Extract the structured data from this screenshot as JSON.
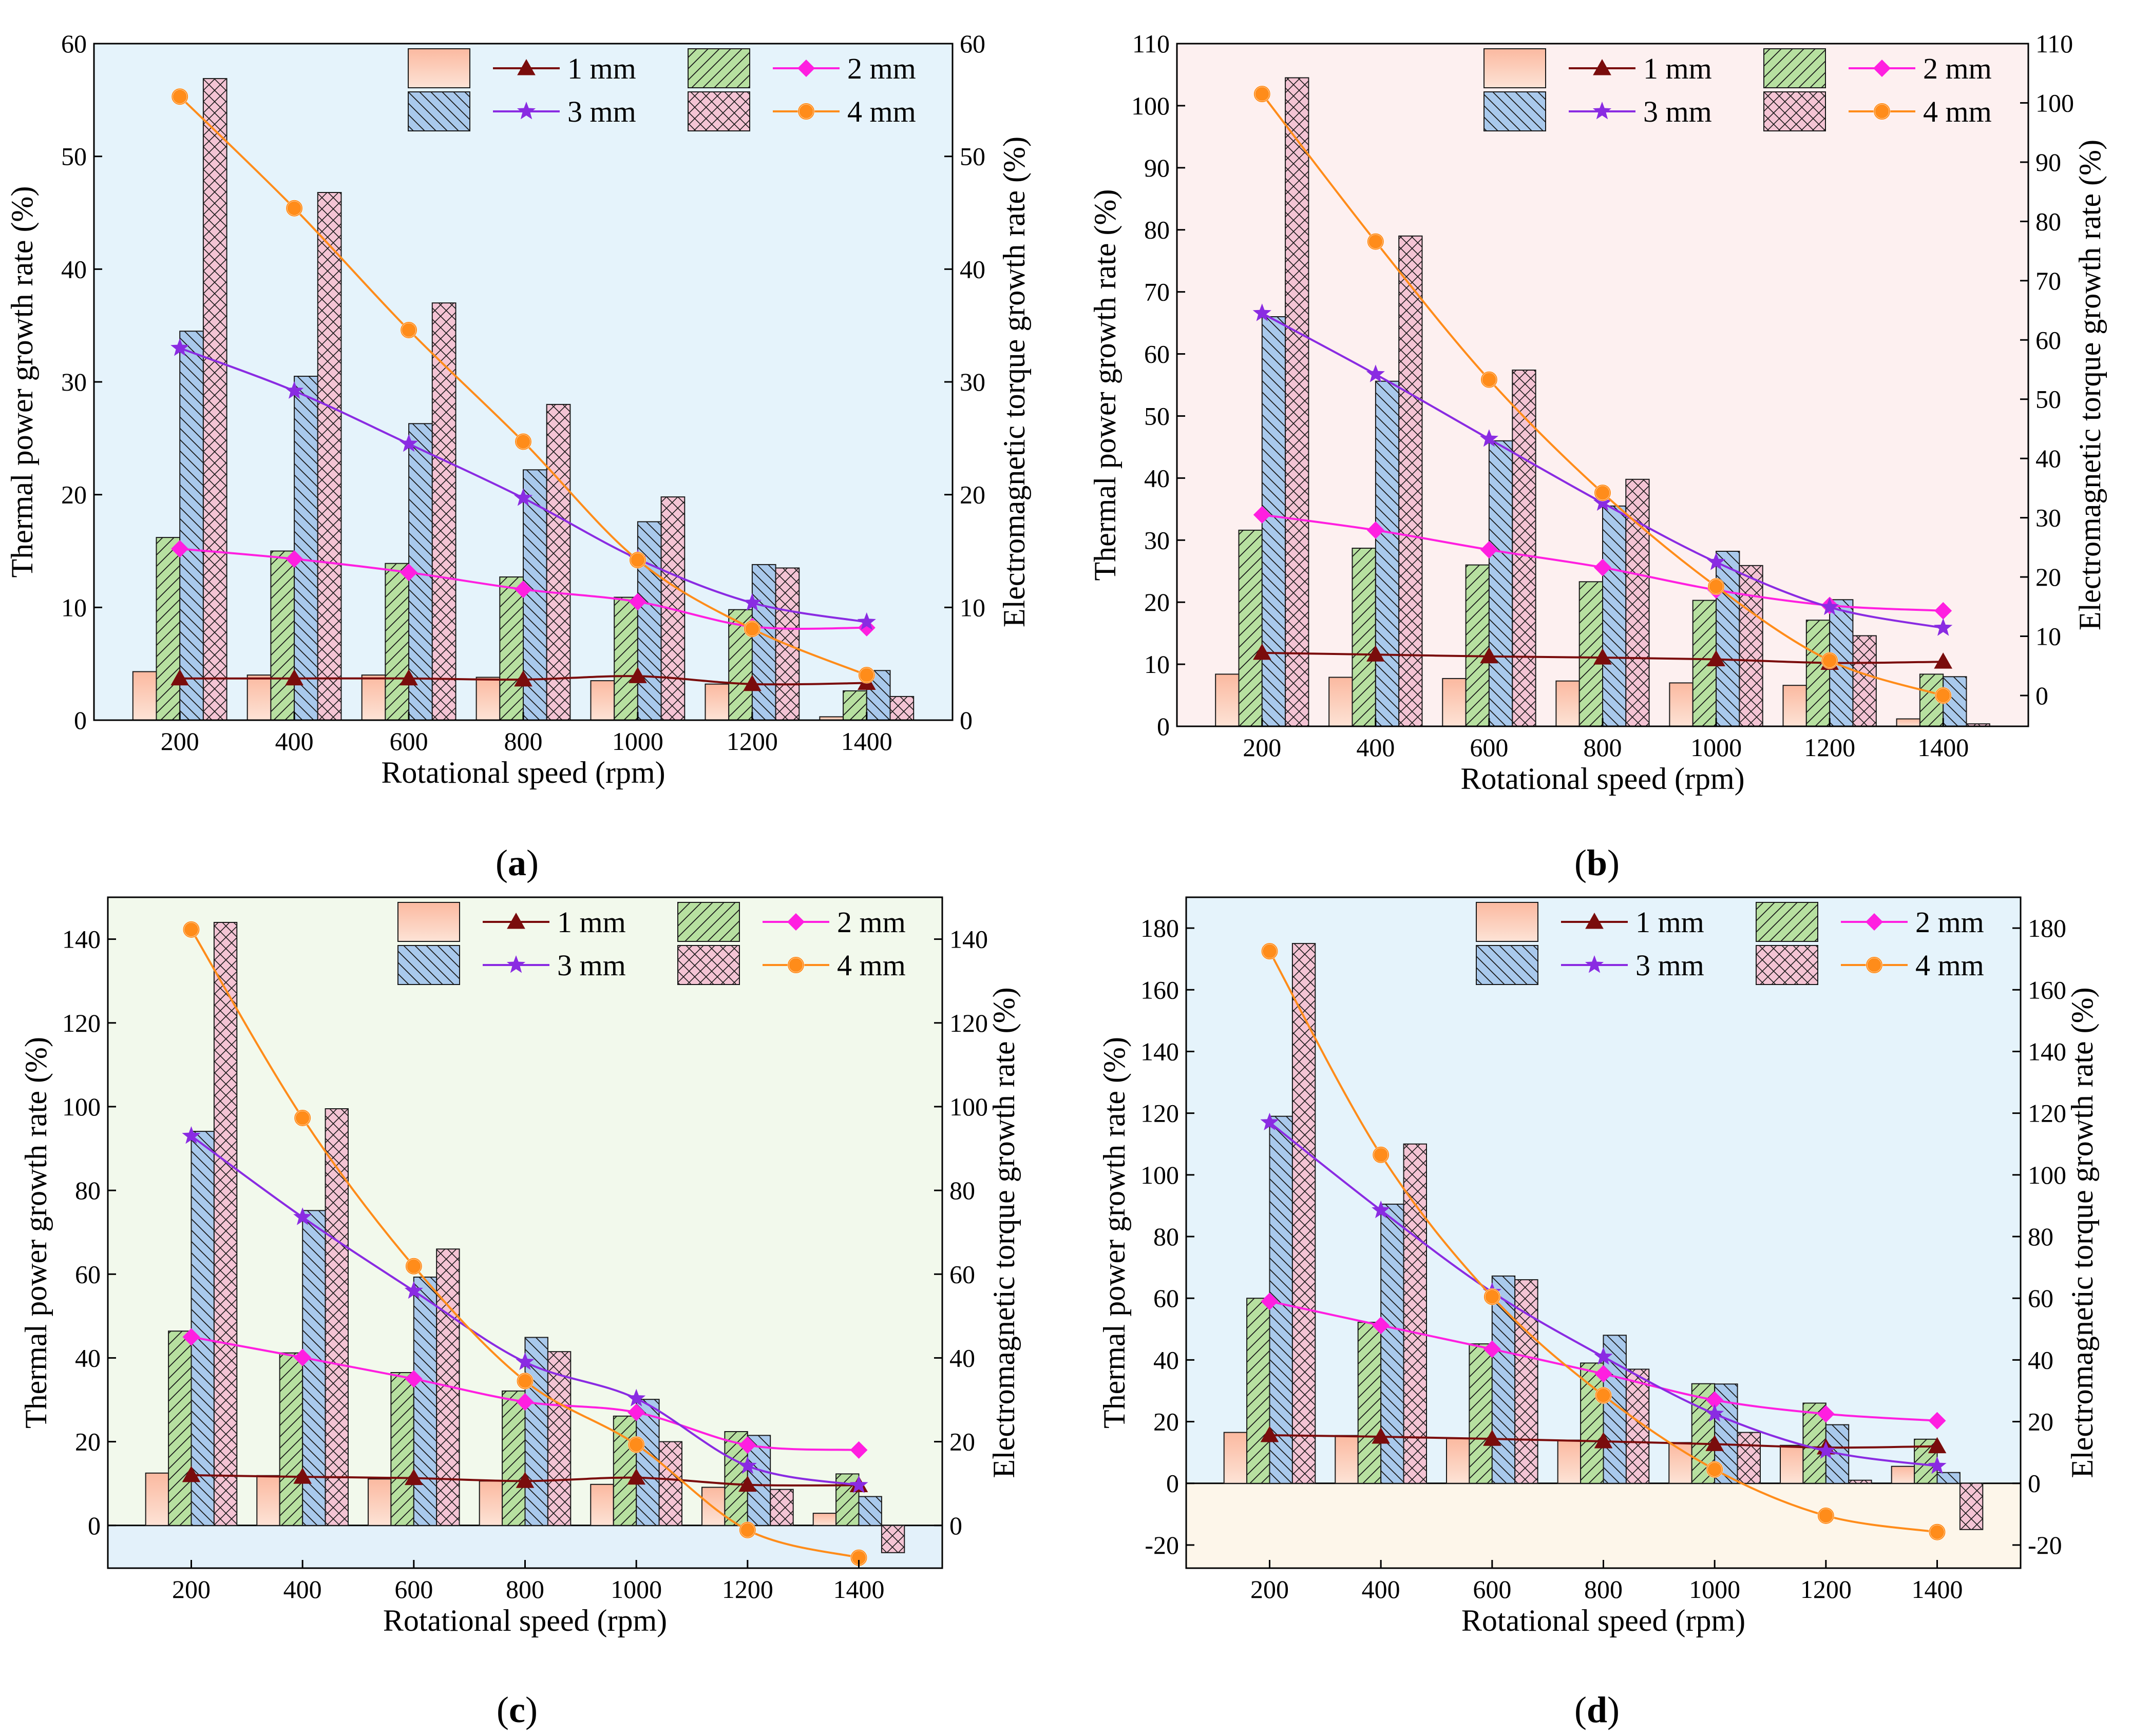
{
  "figure": {
    "labels": [
      "(a)",
      "(b)",
      "(c)",
      "(d)"
    ]
  },
  "chart_data": [
    {
      "panel": "(a)",
      "type": "bar+line",
      "background": "#e5f3fb",
      "xlabel": "Rotational speed (rpm)",
      "ylabel_left": "Thermal power growth rate (%)",
      "ylabel_right": "Electromagnetic torque growth rate (%)",
      "categories": [
        200,
        400,
        600,
        800,
        1000,
        1200,
        1400
      ],
      "ylim_left": [
        0,
        60
      ],
      "yticks_left": [
        0,
        10,
        20,
        30,
        40,
        50,
        60
      ],
      "ylim_right": [
        0,
        60
      ],
      "yticks_right": [
        0,
        10,
        20,
        30,
        40,
        50,
        60
      ],
      "bars": [
        {
          "name": "1 mm",
          "values": [
            4.3,
            4.0,
            4.0,
            3.8,
            3.5,
            3.2,
            0.3
          ]
        },
        {
          "name": "2 mm",
          "values": [
            16.2,
            15.0,
            13.9,
            12.7,
            10.9,
            9.8,
            2.6
          ]
        },
        {
          "name": "3 mm",
          "values": [
            34.5,
            30.5,
            26.3,
            22.2,
            17.6,
            13.8,
            4.4
          ]
        },
        {
          "name": "4 mm",
          "values": [
            56.9,
            46.8,
            37.0,
            28.0,
            19.8,
            13.5,
            2.1
          ]
        }
      ],
      "lines": [
        {
          "name": "1 mm",
          "values": [
            3.7,
            3.7,
            3.7,
            3.6,
            3.9,
            3.2,
            3.3
          ]
        },
        {
          "name": "2 mm",
          "values": [
            15.2,
            14.3,
            13.1,
            11.6,
            10.5,
            8.3,
            8.2
          ]
        },
        {
          "name": "3 mm",
          "values": [
            33.0,
            29.2,
            24.5,
            19.7,
            14.3,
            10.4,
            8.7
          ]
        },
        {
          "name": "4 mm",
          "values": [
            55.3,
            45.4,
            34.6,
            24.7,
            14.2,
            8.1,
            4.0
          ]
        }
      ],
      "legend": [
        "1 mm",
        "2 mm",
        "3 mm",
        "4 mm"
      ]
    },
    {
      "panel": "(b)",
      "type": "bar+line",
      "background": "#fdf0f0",
      "xlabel": "Rotational speed (rpm)",
      "ylabel_left": "Thermal power growth rate (%)",
      "ylabel_right": "Electromagnetic torque growth rate (%)",
      "categories": [
        200,
        400,
        600,
        800,
        1000,
        1200,
        1400
      ],
      "ylim_left": [
        0,
        110
      ],
      "yticks_left": [
        0,
        10,
        20,
        30,
        40,
        50,
        60,
        70,
        80,
        90,
        100,
        110
      ],
      "ylim_right": [
        -5.2,
        110
      ],
      "yticks_right": [
        0,
        10,
        20,
        30,
        40,
        50,
        60,
        70,
        80,
        90,
        100,
        110
      ],
      "bars": [
        {
          "name": "1 mm",
          "values": [
            8.4,
            7.9,
            7.7,
            7.3,
            7.0,
            6.6,
            1.2
          ]
        },
        {
          "name": "2 mm",
          "values": [
            31.6,
            28.7,
            26.0,
            23.3,
            20.3,
            17.1,
            8.4
          ]
        },
        {
          "name": "3 mm",
          "values": [
            66.0,
            55.6,
            46.0,
            35.5,
            28.2,
            20.4,
            8.0
          ]
        },
        {
          "name": "4 mm",
          "values": [
            104.5,
            79.0,
            57.4,
            39.8,
            25.9,
            14.6,
            0.4
          ]
        }
      ],
      "lines": [
        {
          "name": "1 mm",
          "values": [
            7.2,
            6.9,
            6.6,
            6.4,
            6.1,
            5.5,
            5.7
          ]
        },
        {
          "name": "2 mm",
          "values": [
            30.5,
            27.9,
            24.6,
            21.6,
            17.8,
            15.2,
            14.3
          ]
        },
        {
          "name": "3 mm",
          "values": [
            64.5,
            54.2,
            43.3,
            32.5,
            22.5,
            14.9,
            11.4
          ]
        },
        {
          "name": "4 mm",
          "values": [
            101.5,
            76.6,
            53.3,
            34.2,
            18.4,
            5.9,
            0.0
          ]
        }
      ],
      "legend": [
        "1 mm",
        "2 mm",
        "3 mm",
        "4 mm"
      ]
    },
    {
      "panel": "(c)",
      "type": "bar+line",
      "background": "#f2f9ec",
      "background_below_zero": "#e3f1fa",
      "xlabel": "Rotational speed (rpm)",
      "ylabel_left": "Thermal power growth rate (%)",
      "ylabel_right": "Electromagnetic torque growth rate (%)",
      "categories": [
        200,
        400,
        600,
        800,
        1000,
        1200,
        1400
      ],
      "ylim_left": [
        -10.2,
        150
      ],
      "yticks_left": [
        0,
        20,
        40,
        60,
        80,
        100,
        120,
        140
      ],
      "ylim_right": [
        -10.2,
        150
      ],
      "yticks_right": [
        0,
        20,
        40,
        60,
        80,
        100,
        120,
        140
      ],
      "bars": [
        {
          "name": "1 mm",
          "values": [
            12.5,
            11.9,
            11.1,
            10.6,
            9.8,
            9.1,
            2.9
          ]
        },
        {
          "name": "2 mm",
          "values": [
            46.4,
            41.2,
            36.5,
            32.1,
            26.1,
            22.4,
            12.3
          ]
        },
        {
          "name": "3 mm",
          "values": [
            94.1,
            75.2,
            59.3,
            44.9,
            30.1,
            21.5,
            6.9
          ]
        },
        {
          "name": "4 mm",
          "values": [
            144.0,
            99.5,
            66.0,
            41.5,
            20.0,
            8.6,
            -6.5
          ]
        }
      ],
      "lines": [
        {
          "name": "1 mm",
          "values": [
            12.0,
            11.6,
            11.3,
            10.6,
            11.4,
            9.7,
            9.6
          ]
        },
        {
          "name": "2 mm",
          "values": [
            45.0,
            40.1,
            35.0,
            29.5,
            27.0,
            19.2,
            18.0
          ]
        },
        {
          "name": "3 mm",
          "values": [
            93.0,
            73.6,
            56.0,
            39.0,
            30.3,
            14.2,
            9.6
          ]
        },
        {
          "name": "4 mm",
          "values": [
            142.3,
            97.3,
            61.9,
            34.5,
            19.3,
            -1.1,
            -7.7
          ]
        }
      ],
      "legend": [
        "1 mm",
        "2 mm",
        "3 mm",
        "4 mm"
      ]
    },
    {
      "panel": "(d)",
      "type": "bar+line",
      "background": "#e5f3fb",
      "background_below_zero": "#fdf6ea",
      "xlabel": "Rotational speed (rpm)",
      "ylabel_left": "Thermal power growth rate (%)",
      "ylabel_right": "Electromagnetic torque growth rate (%)",
      "categories": [
        200,
        400,
        600,
        800,
        1000,
        1200,
        1400
      ],
      "ylim_left": [
        -27.5,
        190
      ],
      "yticks_left": [
        -20,
        0,
        20,
        40,
        60,
        80,
        100,
        120,
        140,
        160,
        180
      ],
      "ylim_right": [
        -27.5,
        190
      ],
      "yticks_right": [
        -20,
        0,
        20,
        40,
        60,
        80,
        100,
        120,
        140,
        160,
        180
      ],
      "bars": [
        {
          "name": "1 mm",
          "values": [
            16.5,
            15.5,
            14.5,
            14.0,
            13.2,
            12.3,
            5.5
          ]
        },
        {
          "name": "2 mm",
          "values": [
            60.0,
            52.2,
            45.2,
            39.0,
            32.3,
            26.0,
            14.3
          ]
        },
        {
          "name": "3 mm",
          "values": [
            119.0,
            90.5,
            67.2,
            48.0,
            32.2,
            19.0,
            3.5
          ]
        },
        {
          "name": "4 mm",
          "values": [
            175.0,
            110.0,
            66.0,
            37.0,
            16.5,
            1.0,
            -15.0
          ]
        }
      ],
      "lines": [
        {
          "name": "1 mm",
          "values": [
            15.6,
            15.1,
            14.4,
            13.6,
            12.7,
            11.6,
            12.0
          ]
        },
        {
          "name": "2 mm",
          "values": [
            59.0,
            51.2,
            43.5,
            35.5,
            27.0,
            22.5,
            20.3
          ]
        },
        {
          "name": "3 mm",
          "values": [
            117.0,
            88.5,
            62.0,
            41.0,
            22.5,
            10.5,
            5.6
          ]
        },
        {
          "name": "4 mm",
          "values": [
            172.5,
            106.5,
            60.5,
            28.5,
            4.5,
            -10.5,
            -15.8
          ]
        }
      ],
      "legend": [
        "1 mm",
        "2 mm",
        "3 mm",
        "4 mm"
      ]
    }
  ],
  "series_style": {
    "bar_fills": [
      "#fbc4b0",
      "#b7e0a0",
      "#a9c9ec",
      "#f4c4d4"
    ],
    "line_colors": [
      "#7a0c0c",
      "#ff1fe0",
      "#8a2be2",
      "#ff8c1a"
    ],
    "line_markers": [
      "triangle",
      "diamond",
      "star",
      "circle"
    ]
  }
}
